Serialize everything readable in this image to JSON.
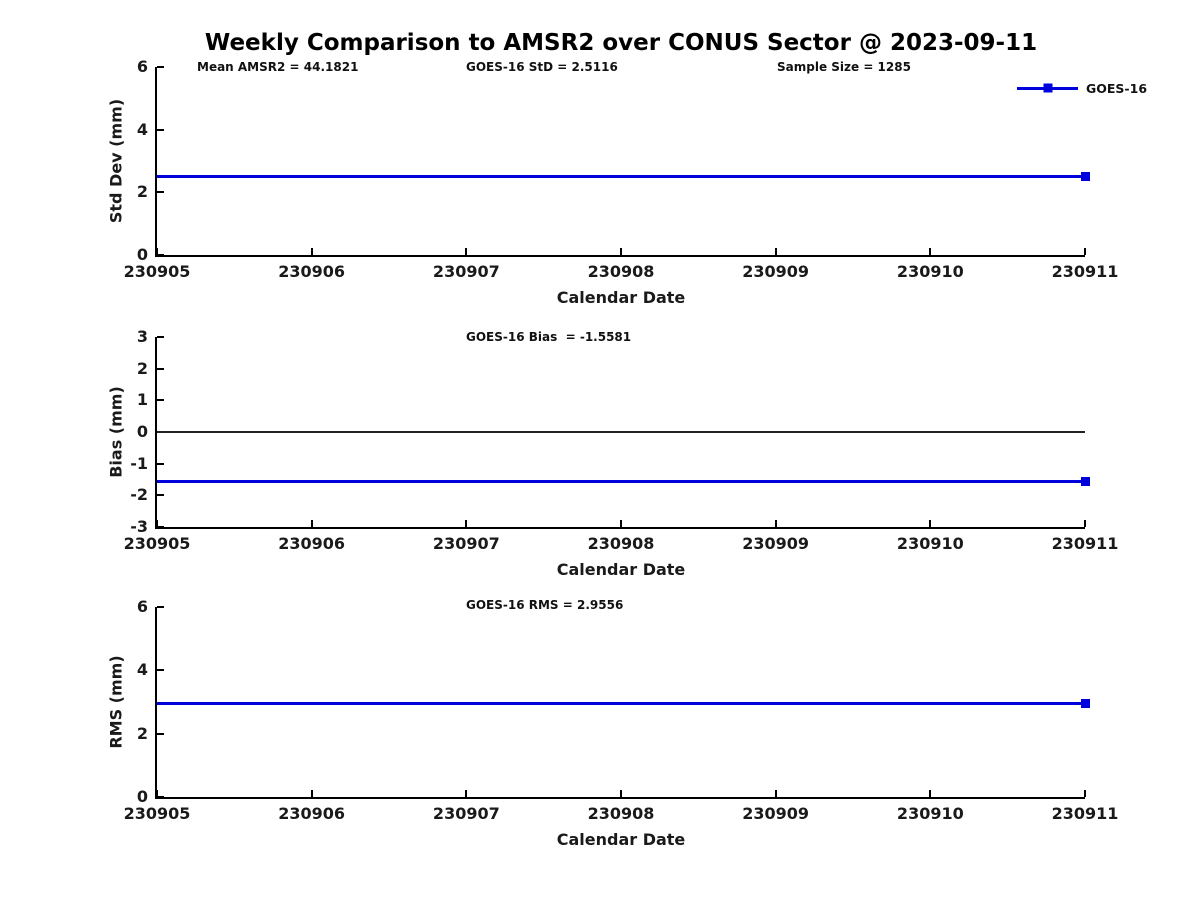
{
  "figure": {
    "title": "Weekly Comparison to AMSR2 over CONUS Sector @ 2023-09-11",
    "legend": {
      "label": "GOES-16",
      "color": "#0000dd"
    },
    "stats": {
      "mean_amsr2": 44.1821,
      "goes16_std": 2.5116,
      "goes16_bias": -1.5581,
      "goes16_rms": 2.9556,
      "sample_size": 1285
    }
  },
  "chart_data": [
    {
      "type": "line",
      "panel": "std-dev",
      "annotations": [
        "Mean AMSR2 = 44.1821",
        "GOES-16 StD = 2.5116",
        "Sample Size = 1285"
      ],
      "ylabel": "Std Dev (mm)",
      "xlabel": "Calendar Date",
      "ylim": [
        0,
        6
      ],
      "yticks": [
        0,
        2,
        4,
        6
      ],
      "x": [
        "230905",
        "230906",
        "230907",
        "230908",
        "230909",
        "230910",
        "230911"
      ],
      "grid": false,
      "zero_line": false,
      "legend_position": "top-right",
      "series": [
        {
          "name": "GOES-16",
          "color": "#0000dd",
          "marker": "square",
          "marker_at": "end",
          "values": [
            2.5116,
            2.5116,
            2.5116,
            2.5116,
            2.5116,
            2.5116,
            2.5116
          ]
        }
      ]
    },
    {
      "type": "line",
      "panel": "bias",
      "annotations": [
        "GOES-16 Bias  = -1.5581"
      ],
      "ylabel": "Bias (mm)",
      "xlabel": "Calendar Date",
      "ylim": [
        -3,
        3
      ],
      "yticks": [
        -3,
        -2,
        -1,
        0,
        1,
        2,
        3
      ],
      "x": [
        "230905",
        "230906",
        "230907",
        "230908",
        "230909",
        "230910",
        "230911"
      ],
      "grid": false,
      "zero_line": true,
      "series": [
        {
          "name": "GOES-16",
          "color": "#0000dd",
          "marker": "square",
          "marker_at": "end",
          "values": [
            -1.5581,
            -1.5581,
            -1.5581,
            -1.5581,
            -1.5581,
            -1.5581,
            -1.5581
          ]
        }
      ]
    },
    {
      "type": "line",
      "panel": "rms",
      "annotations": [
        "GOES-16 RMS = 2.9556"
      ],
      "ylabel": "RMS (mm)",
      "xlabel": "Calendar Date",
      "ylim": [
        0,
        6
      ],
      "yticks": [
        0,
        2,
        4,
        6
      ],
      "x": [
        "230905",
        "230906",
        "230907",
        "230908",
        "230909",
        "230910",
        "230911"
      ],
      "grid": false,
      "zero_line": false,
      "series": [
        {
          "name": "GOES-16",
          "color": "#0000dd",
          "marker": "square",
          "marker_at": "end",
          "values": [
            2.9556,
            2.9556,
            2.9556,
            2.9556,
            2.9556,
            2.9556,
            2.9556
          ]
        }
      ]
    }
  ]
}
